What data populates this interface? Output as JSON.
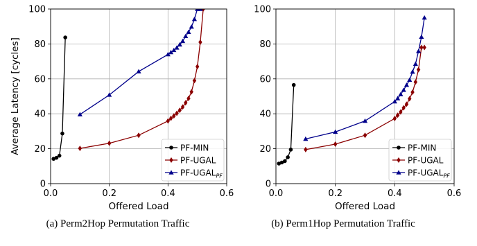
{
  "figure": {
    "ylabel": "Average Latency [cycles]",
    "panels": [
      {
        "caption": "(a) Perm2Hop Permutation Traffic"
      },
      {
        "caption": "(b) Perm1Hop Permutation Traffic"
      }
    ]
  },
  "chart_data": [
    {
      "type": "line",
      "xlabel": "Offered Load",
      "ylabel": "Average Latency [cycles]",
      "xlim": [
        0,
        0.6
      ],
      "ylim": [
        0,
        100
      ],
      "xticks": [
        "0.0",
        "0.2",
        "0.4",
        "0.6"
      ],
      "yticks": [
        "0",
        "20",
        "40",
        "60",
        "80",
        "100"
      ],
      "grid": true,
      "legend_position": "lower-right",
      "series": [
        {
          "name": "PF-MIN",
          "color": "#000000",
          "marker": "circle",
          "x": [
            0.01,
            0.02,
            0.03,
            0.04,
            0.05
          ],
          "y": [
            14.2,
            14.8,
            16.0,
            28.7,
            83.7
          ]
        },
        {
          "name": "PF-UGAL",
          "color": "#8b0000",
          "marker": "diamond",
          "x": [
            0.1,
            0.2,
            0.3,
            0.4,
            0.41,
            0.42,
            0.43,
            0.44,
            0.45,
            0.46,
            0.47,
            0.48,
            0.49,
            0.5,
            0.51,
            0.52
          ],
          "y": [
            20.2,
            23.1,
            27.7,
            35.9,
            37.4,
            38.8,
            40.3,
            42.0,
            43.9,
            46.3,
            48.8,
            52.6,
            59.0,
            67.0,
            81.0,
            100
          ]
        },
        {
          "name": "PF-UGAL",
          "name_subscript": "PF",
          "color": "#00008b",
          "marker": "triangle",
          "x": [
            0.1,
            0.2,
            0.3,
            0.4,
            0.41,
            0.42,
            0.43,
            0.44,
            0.45,
            0.46,
            0.47,
            0.48,
            0.49,
            0.5,
            0.51
          ],
          "y": [
            39.6,
            50.8,
            64.2,
            74.0,
            75.2,
            76.4,
            77.8,
            79.6,
            81.6,
            84.4,
            86.8,
            89.8,
            94.2,
            100,
            100
          ]
        }
      ]
    },
    {
      "type": "line",
      "xlabel": "Offered Load",
      "ylabel": "",
      "xlim": [
        0,
        0.6
      ],
      "ylim": [
        0,
        100
      ],
      "xticks": [
        "0.0",
        "0.2",
        "0.4",
        "0.6"
      ],
      "yticks": [
        "0",
        "20",
        "40",
        "60",
        "80",
        "100"
      ],
      "grid": true,
      "legend_position": "lower-right",
      "series": [
        {
          "name": "PF-MIN",
          "color": "#000000",
          "marker": "circle",
          "x": [
            0.01,
            0.02,
            0.03,
            0.04,
            0.05,
            0.06
          ],
          "y": [
            11.5,
            12.1,
            12.9,
            15.1,
            19.5,
            56.5
          ]
        },
        {
          "name": "PF-UGAL",
          "color": "#8b0000",
          "marker": "diamond",
          "x": [
            0.1,
            0.2,
            0.3,
            0.4,
            0.41,
            0.42,
            0.43,
            0.44,
            0.45,
            0.46,
            0.47,
            0.48,
            0.49,
            0.5
          ],
          "y": [
            19.5,
            22.6,
            27.7,
            37.3,
            39.2,
            41.0,
            43.4,
            45.5,
            48.6,
            52.4,
            58.2,
            65.3,
            78.0,
            78.0
          ]
        },
        {
          "name": "PF-UGAL",
          "name_subscript": "PF",
          "color": "#00008b",
          "marker": "triangle",
          "x": [
            0.1,
            0.2,
            0.3,
            0.4,
            0.41,
            0.42,
            0.43,
            0.44,
            0.45,
            0.46,
            0.47,
            0.48,
            0.49,
            0.5
          ],
          "y": [
            25.6,
            29.6,
            35.9,
            47.0,
            48.8,
            51.1,
            53.6,
            56.5,
            59.4,
            64.0,
            68.5,
            75.8,
            84.0,
            95.0
          ]
        }
      ]
    }
  ]
}
